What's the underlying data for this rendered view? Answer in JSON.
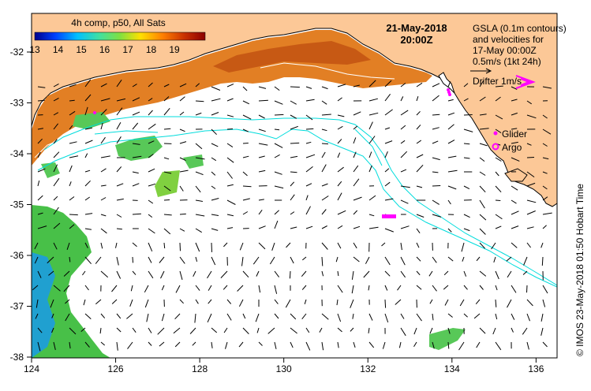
{
  "title": {
    "product": "4h comp, p50, All Sats",
    "date": "21-May-2018",
    "time": "20:00Z"
  },
  "colorbar": {
    "ticks": [
      "13",
      "14",
      "15",
      "16",
      "17",
      "18",
      "19"
    ],
    "stops": [
      "#00008b",
      "#0040ff",
      "#00c0ff",
      "#40e0a0",
      "#80e040",
      "#ffe000",
      "#ff8000",
      "#c83000",
      "#8b0000"
    ]
  },
  "legend": {
    "line1": "GSLA (0.1m contours)",
    "line2": "and velocities for",
    "line3": "17-May 00:00Z",
    "line4": "0.5m/s (1kt 24h)",
    "drifter": "Drifter 1m/s",
    "glider": "Glider",
    "argo": "Argo"
  },
  "credit": "©  IMOS 23-May-2018 01:50 Hobart Time",
  "axes": {
    "x_ticks": [
      "124",
      "126",
      "128",
      "130",
      "132",
      "134",
      "136"
    ],
    "y_ticks": [
      "-32",
      "-33",
      "-34",
      "-35",
      "-36",
      "-37",
      "-38"
    ]
  },
  "colors": {
    "land": "#fcc897",
    "current_lines": "#00e0e0",
    "markers": "#ff00ff",
    "sst_warm": "#e07010",
    "sst_cool": "#40c060"
  }
}
